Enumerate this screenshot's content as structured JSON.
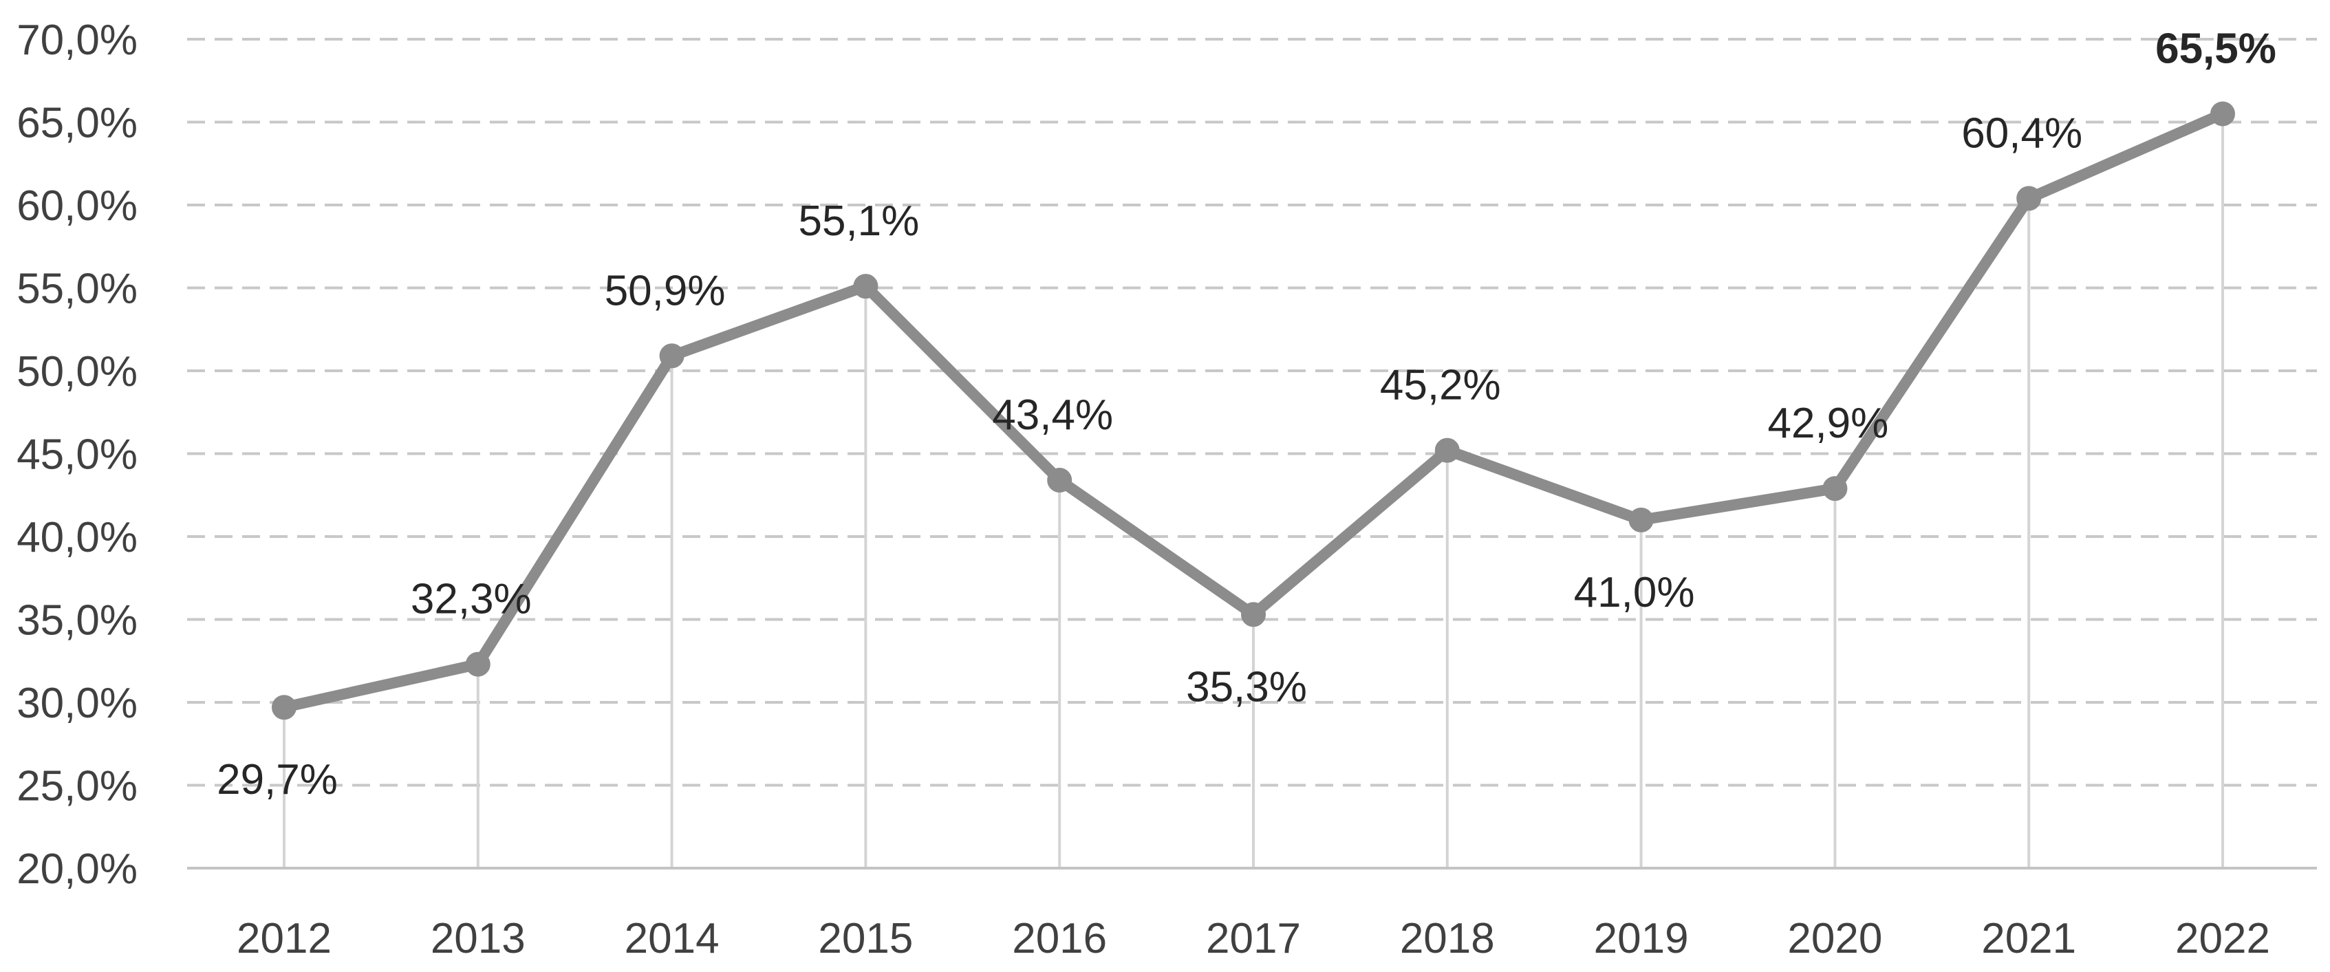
{
  "chart_data": {
    "type": "line",
    "categories": [
      "2012",
      "2013",
      "2014",
      "2015",
      "2016",
      "2017",
      "2018",
      "2019",
      "2020",
      "2021",
      "2022"
    ],
    "series": [
      {
        "values": [
          29.7,
          32.3,
          50.9,
          55.1,
          43.4,
          35.3,
          45.2,
          41.0,
          42.9,
          60.4,
          65.5
        ]
      }
    ],
    "data_labels": [
      "29,7%",
      "32,3%",
      "50,9%",
      "55,1%",
      "43,4%",
      "35,3%",
      "45,2%",
      "41,0%",
      "42,9%",
      "60,4%",
      "65,5%"
    ],
    "data_label_positions": [
      "below",
      "above",
      "above",
      "above",
      "above",
      "below",
      "above",
      "below",
      "above",
      "above",
      "above"
    ],
    "emphasized_label_index": 10,
    "y_tick_labels": [
      "20,0%",
      "25,0%",
      "30,0%",
      "35,0%",
      "40,0%",
      "45,0%",
      "50,0%",
      "55,0%",
      "60,0%",
      "65,0%",
      "70,0%"
    ],
    "ylim": [
      20,
      70
    ],
    "ystep": 5,
    "grid": "horizontal-dashed",
    "drop_lines": true,
    "legend": "none",
    "colors": {
      "series": "#8c8c8c",
      "grid": "#c8c8c8",
      "drop_line": "#d4d4d4",
      "axis": "#c4c4c4",
      "tick_text": "#404040",
      "label_text": "#262626"
    }
  }
}
